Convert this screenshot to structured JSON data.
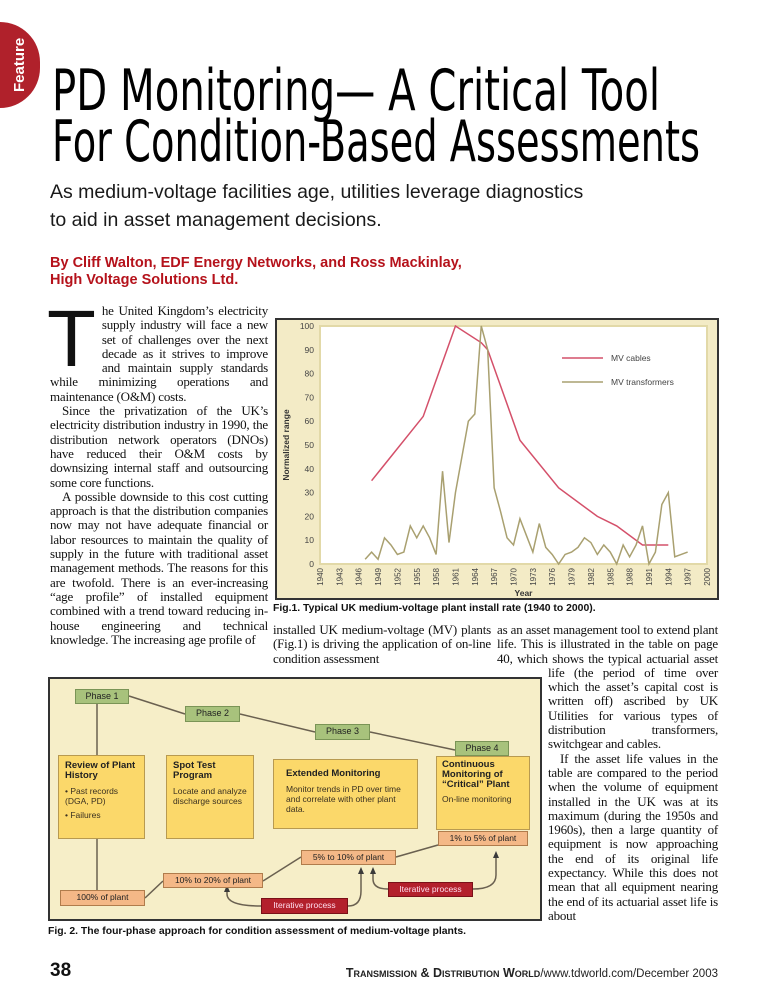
{
  "section_tab": "Feature",
  "title": {
    "line1": "PD Monitoring— A Critical Tool",
    "line2": "For Condition-Based Assessments"
  },
  "subtitle": {
    "line1": "As medium-voltage facilities age, utilities leverage diagnostics",
    "line2": "to aid in asset management decisions."
  },
  "byline": {
    "line1": "By Cliff Walton, EDF Energy Networks, and Ross Mackinlay,",
    "line2": "High Voltage Solutions Ltd."
  },
  "body": {
    "dropcap": "T",
    "p1": "he United Kingdom’s electricity supply industry will face a new set of challenges over the next decade as it strives to improve and maintain supply standards while minimizing operations and maintenance (O&M) costs.",
    "p2": "Since the privatization of the UK’s electricity distribution industry in 1990, the distribution network operators (DNOs) have reduced their O&M costs by downsizing internal staff and outsourcing some core functions.",
    "p3": "A possible downside to this cost cutting approach is that the distribution companies now may not have adequate financial or labor resources to maintain the quality of supply in the future with traditional asset management methods. The reasons for this are twofold. There is an ever-increasing “age profile” of installed equipment combined with a trend toward reducing in-house engineering and technical knowledge. The increasing age profile of",
    "col2": "installed UK medium-voltage (MV) plants (Fig.1) is driving the application of on-line condition assessment",
    "col3_p1": "as an asset management tool to extend plant life. This is illustrated in the table on page 40, which shows the typical actuarial asset life (the period of time over which the asset’s capital cost is written off) ascribed by UK Utilities for various types of distribution transformers, switchgear and cables.",
    "col3_p2": "If the asset life values in the table are compared to the period when the volume of equipment installed in the UK was at its maximum (during the 1950s and 1960s), then a large quantity of equipment is now approaching the end of its original life expectancy. While this does not mean that all equipment nearing the end of its actuarial asset life is about"
  },
  "fig1_caption": "Fig.1. Typical UK medium-voltage plant install rate (1940 to 2000).",
  "fig2_caption": "Fig. 2. The four-phase approach for condition assessment of medium-voltage plants.",
  "chart_data": {
    "type": "line",
    "title": "",
    "xlabel": "Year",
    "ylabel": "Normalized range",
    "xlim": [
      1940,
      2000
    ],
    "ylim": [
      0,
      100
    ],
    "x_ticks": [
      1940,
      1943,
      1946,
      1949,
      1952,
      1955,
      1958,
      1961,
      1964,
      1967,
      1970,
      1973,
      1976,
      1979,
      1982,
      1985,
      1988,
      1991,
      1994,
      1997,
      2000
    ],
    "y_ticks": [
      0,
      10,
      20,
      30,
      40,
      50,
      60,
      70,
      80,
      90,
      100
    ],
    "legend_position": "top-right",
    "grid": false,
    "series": [
      {
        "name": "MV cables",
        "color": "#d4506a",
        "x": [
          1948,
          1956,
          1961,
          1965,
          1966,
          1971,
          1977,
          1983,
          1986,
          1990,
          1994
        ],
        "y": [
          35,
          62,
          100,
          93,
          90,
          52,
          32,
          20,
          16,
          8,
          8
        ]
      },
      {
        "name": "MV transformers",
        "color": "#a9a070",
        "x": [
          1947,
          1948,
          1949,
          1950,
          1951,
          1952,
          1953,
          1954,
          1955,
          1956,
          1957,
          1958,
          1959,
          1960,
          1961,
          1962,
          1963,
          1964,
          1965,
          1966,
          1967,
          1968,
          1969,
          1970,
          1971,
          1972,
          1973,
          1974,
          1975,
          1976,
          1977,
          1978,
          1979,
          1980,
          1981,
          1982,
          1983,
          1984,
          1985,
          1986,
          1987,
          1988,
          1989,
          1990,
          1991,
          1992,
          1993,
          1994,
          1995,
          1996,
          1997
        ],
        "y": [
          2,
          5,
          2,
          11,
          8,
          4,
          5,
          16,
          11,
          16,
          11,
          4,
          39,
          9,
          30,
          45,
          60,
          63,
          100,
          90,
          32,
          22,
          11,
          8,
          19,
          12,
          5,
          17,
          7,
          4,
          0,
          4,
          5,
          7,
          11,
          9,
          4,
          8,
          5,
          0,
          8,
          3,
          8,
          16,
          0,
          5,
          25,
          30,
          3,
          4,
          5
        ]
      }
    ]
  },
  "diagram": {
    "phases": [
      "Phase 1",
      "Phase 2",
      "Phase 3",
      "Phase 4"
    ],
    "steps": [
      {
        "title": "Review of Plant History",
        "items": [
          "• Past records (DGA, PD)",
          "• Failures"
        ]
      },
      {
        "title": "Spot Test Program",
        "items": [
          "Locate and analyze discharge sources"
        ]
      },
      {
        "title": "Extended Monitoring",
        "items": [
          "Monitor trends in PD over time and correlate with other plant data."
        ]
      },
      {
        "title": "Continuous Monitoring of “Critical” Plant",
        "items": [
          "On-line monitoring"
        ]
      }
    ],
    "coverage": [
      "100% of plant",
      "10% to 20% of plant",
      "5% to 10% of plant",
      "1% to 5% of plant"
    ],
    "iterative": [
      "Iterative process",
      "Iterative process"
    ]
  },
  "footer": {
    "page": "38",
    "publication": "Transmission & Distribution World",
    "url_date": "/www.tdworld.com/December 2003"
  },
  "colors": {
    "accent_red": "#b5121b",
    "cables": "#d4506a",
    "transformers": "#a9a070"
  }
}
